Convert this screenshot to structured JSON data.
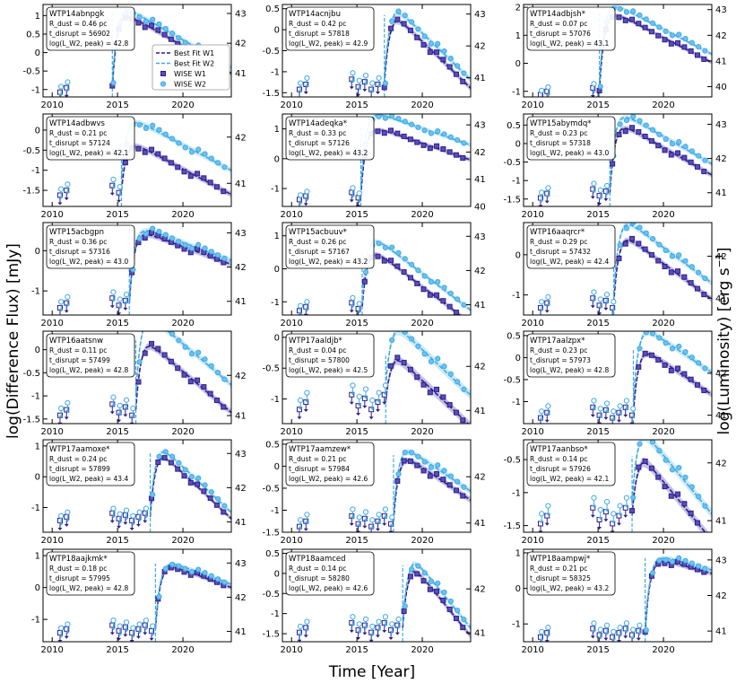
{
  "figure": {
    "ylabel_left": "log(Difference Flux) [mJy]",
    "ylabel_right": "log(Luminosity) [erg s$^{-1}$]",
    "ylabel_right_text": "log(Luminosity) [erg s",
    "ylabel_right_sup": "−1",
    "ylabel_right_close": "]",
    "xlabel": "Time [Year]",
    "legend": [
      "Best Fit W1",
      "Best Fit W2",
      "WISE W1",
      "WISE W2"
    ],
    "colors": {
      "w1": "#2d1e8c",
      "w2": "#3fa9e6",
      "w1_fill": "#5a4fb8",
      "w2_fill": "#6cc3f0"
    }
  },
  "chart_data": [
    {
      "type": "scatter",
      "name": "WTP14abnpgk",
      "lines": [
        "WTP14abnpgk",
        "R_dust = 0.46 pc",
        "t_disrupt = 56902",
        "log(L_W2, peak) = 42.8"
      ],
      "xlim": [
        2009.3,
        2023.7
      ],
      "ylim": [
        -1.2,
        1.3
      ],
      "yticks": [
        -1,
        -0.5,
        0,
        0.5,
        1
      ],
      "ylim2": [
        40.2,
        43.3
      ],
      "yticks2": [
        41,
        42,
        43
      ],
      "xticks": [
        2010,
        2015,
        2020
      ],
      "t0": 2014.6,
      "peak": 1.1,
      "decay": 6,
      "pre1": -0.95,
      "pre2": -0.8,
      "w2off": 0.08
    },
    {
      "type": "scatter",
      "name": "WTP14acnjbu",
      "lines": [
        "WTP14acnjbu",
        "R_dust = 0.42 pc",
        "t_disrupt = 57818",
        "log(L_W2, peak) = 42.9"
      ],
      "xlim": [
        2009.3,
        2023.7
      ],
      "ylim": [
        -1.6,
        0.6
      ],
      "yticks": [
        -1.5,
        -1,
        -0.5,
        0,
        0.5
      ],
      "ylim2": [
        40.4,
        43.3
      ],
      "yticks2": [
        41,
        42,
        43
      ],
      "xticks": [
        2010,
        2015,
        2020
      ],
      "t0": 2017.1,
      "peak": 0.35,
      "decay": 4,
      "pre1": -1.3,
      "pre2": -1.15,
      "w2off": 0.1
    },
    {
      "type": "scatter",
      "name": "WTP14adbjsh*",
      "lines": [
        "WTP14adbjsh*",
        "R_dust = 0.07 pc",
        "t_disrupt = 57076",
        "log(L_W2, peak) = 43.1"
      ],
      "xlim": [
        2009.3,
        2023.7
      ],
      "ylim": [
        -1.2,
        2.1
      ],
      "yticks": [
        -1,
        0,
        1,
        2
      ],
      "ylim2": [
        39.6,
        43.2
      ],
      "yticks2": [
        40,
        41,
        42,
        43
      ],
      "xticks": [
        2010,
        2015,
        2020
      ],
      "t0": 2015.1,
      "peak": 1.9,
      "decay": 5,
      "pre1": -1.0,
      "pre2": -0.85,
      "w2off": 0.15
    },
    {
      "type": "scatter",
      "name": "WTP14adbwvs",
      "lines": [
        "WTP14adbwvs",
        "R_dust = 0.21 pc",
        "t_disrupt = 57124",
        "log(L_W2, peak) = 42.1"
      ],
      "xlim": [
        2009.3,
        2023.7
      ],
      "ylim": [
        -1.9,
        0.4
      ],
      "yticks": [
        -1.5,
        -1,
        -0.5,
        0
      ],
      "ylim2": [
        40.5,
        42.5
      ],
      "yticks2": [
        41,
        42
      ],
      "xticks": [
        2010,
        2015,
        2020
      ],
      "t0": 2015.3,
      "peak": -0.3,
      "decay": 7,
      "pre1": -1.5,
      "pre2": -1.35,
      "w2off": 0.3
    },
    {
      "type": "scatter",
      "name": "WTP14adeqka*",
      "lines": [
        "WTP14adeqka*",
        "R_dust = 0.33 pc",
        "t_disrupt = 57126",
        "log(L_W2, peak) = 43.2"
      ],
      "xlim": [
        2009.3,
        2023.7
      ],
      "ylim": [
        -1.6,
        1.5
      ],
      "yticks": [
        -1,
        0,
        1
      ],
      "ylim2": [
        40,
        43.4
      ],
      "yticks2": [
        40,
        41,
        42,
        43
      ],
      "xticks": [
        2010,
        2015,
        2020
      ],
      "t0": 2015.3,
      "peak": 1.1,
      "decay": 8,
      "pre1": -1.25,
      "pre2": -1.1,
      "w2off": 0.25
    },
    {
      "type": "scatter",
      "name": "WTP15abymdq*",
      "lines": [
        "WTP15abymdq*",
        "R_dust = 0.23 pc",
        "t_disrupt = 57318",
        "log(L_W2, peak) = 43.0"
      ],
      "xlim": [
        2009.3,
        2023.7
      ],
      "ylim": [
        -1.7,
        0.8
      ],
      "yticks": [
        -1.5,
        -1,
        -0.5,
        0,
        0.5
      ],
      "ylim2": [
        40.6,
        43.3
      ],
      "yticks2": [
        41,
        42,
        43
      ],
      "xticks": [
        2010,
        2015,
        2020
      ],
      "t0": 2015.9,
      "peak": 0.55,
      "decay": 6,
      "pre1": -1.35,
      "pre2": -1.2,
      "w2off": 0.15
    },
    {
      "type": "scatter",
      "name": "WTP15acbgpn",
      "lines": [
        "WTP15acbgpn",
        "R_dust = 0.36 pc",
        "t_disrupt = 57316",
        "log(L_W2, peak) = 43.0"
      ],
      "xlim": [
        2009.3,
        2023.7
      ],
      "ylim": [
        -1.6,
        0.7
      ],
      "yticks": [
        -1,
        0
      ],
      "ylim2": [
        40.6,
        43.3
      ],
      "yticks2": [
        41,
        42,
        43
      ],
      "xticks": [
        2010,
        2015,
        2020
      ],
      "t0": 2015.9,
      "peak": 0.5,
      "decay": 10,
      "pre1": -1.3,
      "pre2": -1.15,
      "w2off": 0.05
    },
    {
      "type": "scatter",
      "name": "WTP15acbuuv*",
      "lines": [
        "WTP15acbuuv*",
        "R_dust = 0.26 pc",
        "t_disrupt = 57167",
        "log(L_W2, peak) = 43.2"
      ],
      "xlim": [
        2009.3,
        2023.7
      ],
      "ylim": [
        -1.4,
        1.4
      ],
      "yticks": [
        -1,
        0,
        1
      ],
      "ylim2": [
        40.7,
        43.4
      ],
      "yticks2": [
        41,
        42,
        43
      ],
      "xticks": [
        2010,
        2015,
        2020
      ],
      "t0": 2015.4,
      "peak": 0.6,
      "decay": 4,
      "pre1": -1.15,
      "pre2": -1.0,
      "w2off": 0.2
    },
    {
      "type": "scatter",
      "name": "WTP16aaqrcr*",
      "lines": [
        "WTP16aaqrcr*",
        "R_dust = 0.29 pc",
        "t_disrupt = 57432",
        "log(L_W2, peak) = 42.4"
      ],
      "xlim": [
        2009.3,
        2023.7
      ],
      "ylim": [
        -1.5,
        0.8
      ],
      "yticks": [
        -1,
        0
      ],
      "ylim2": [
        40.6,
        42.8
      ],
      "yticks2": [
        41,
        42
      ],
      "xticks": [
        2010,
        2015,
        2020
      ],
      "t0": 2016.2,
      "peak": 0.5,
      "decay": 5,
      "pre1": -1.2,
      "pre2": -1.05,
      "w2off": 0.2
    },
    {
      "type": "scatter",
      "name": "WTP16aatsnw",
      "lines": [
        "WTP16aatsnw",
        "R_dust = 0.11 pc",
        "t_disrupt = 57499",
        "log(L_W2, peak) = 42.8"
      ],
      "xlim": [
        2009.3,
        2023.7
      ],
      "ylim": [
        -1.6,
        0.4
      ],
      "yticks": [
        -1.5,
        -1,
        -0.5,
        0
      ],
      "ylim2": [
        40.8,
        43.1
      ],
      "yticks2": [
        41,
        42
      ],
      "xticks": [
        2010,
        2015,
        2020
      ],
      "t0": 2016.4,
      "peak": 0.2,
      "decay": 5,
      "pre1": -1.3,
      "pre2": -1.15,
      "w2off": 0.3
    },
    {
      "type": "scatter",
      "name": "WTP17aaldjb*",
      "lines": [
        "WTP17aaldjb*",
        "R_dust = 0.04 pc",
        "t_disrupt = 57800",
        "log(L_W2, peak) = 42.5"
      ],
      "xlim": [
        2009.3,
        2023.7
      ],
      "ylim": [
        -1.4,
        0.1
      ],
      "yticks": [
        -1,
        -0.5,
        0
      ],
      "ylim2": [
        40.7,
        42.8
      ],
      "yticks2": [
        41,
        42
      ],
      "xticks": [
        2010,
        2015,
        2020
      ],
      "t0": 2017.2,
      "peak": -0.3,
      "decay": 6,
      "pre1": -1.05,
      "pre2": -0.9,
      "w2off": 0.25
    },
    {
      "type": "scatter",
      "name": "WTP17aalzpx*",
      "lines": [
        "WTP17aalzpx*",
        "R_dust = 0.23 pc",
        "t_disrupt = 57973",
        "log(L_W2, peak) = 42.8"
      ],
      "xlim": [
        2009.3,
        2023.7
      ],
      "ylim": [
        -1.5,
        0.6
      ],
      "yticks": [
        -1,
        -0.5,
        0,
        0.5
      ],
      "ylim2": [
        40.8,
        43.0
      ],
      "yticks2": [
        41,
        42
      ],
      "xticks": [
        2010,
        2015,
        2020
      ],
      "t0": 2017.7,
      "peak": 0.2,
      "decay": 6,
      "pre1": -1.25,
      "pre2": -1.1,
      "w2off": 0.25
    },
    {
      "type": "scatter",
      "name": "WTP17aamoxe*",
      "lines": [
        "WTP17aamoxe*",
        "R_dust = 0.24 pc",
        "t_disrupt = 57899",
        "log(L_W2, peak) = 43.4"
      ],
      "xlim": [
        2009.3,
        2023.7
      ],
      "ylim": [
        -1.8,
        1.2
      ],
      "yticks": [
        -1,
        0,
        1
      ],
      "ylim2": [
        40.7,
        43.4
      ],
      "yticks2": [
        41,
        42,
        43
      ],
      "xticks": [
        2010,
        2015,
        2020
      ],
      "t0": 2017.5,
      "peak": 0.8,
      "decay": 3,
      "pre1": -1.3,
      "pre2": -1.15,
      "w2off": 0.1
    },
    {
      "type": "scatter",
      "name": "WTP17aamzew*",
      "lines": [
        "WTP17aamzew*",
        "R_dust = 0.21 pc",
        "t_disrupt = 57984",
        "log(L_W2, peak) = 42.6"
      ],
      "xlim": [
        2009.3,
        2023.7
      ],
      "ylim": [
        -1.5,
        0.6
      ],
      "yticks": [
        -1.5,
        -1,
        -0.5,
        0,
        0.5
      ],
      "ylim2": [
        40.8,
        42.8
      ],
      "yticks2": [
        41,
        42
      ],
      "xticks": [
        2010,
        2015,
        2020
      ],
      "t0": 2017.8,
      "peak": 0.25,
      "decay": 6,
      "pre1": -1.25,
      "pre2": -1.1,
      "w2off": 0.1
    },
    {
      "type": "scatter",
      "name": "WTP17aanbso*",
      "lines": [
        "WTP17aanbso*",
        "R_dust = 0.14 pc",
        "t_disrupt = 57926",
        "log(L_W2, peak) = 42.1"
      ],
      "xlim": [
        2009.3,
        2023.7
      ],
      "ylim": [
        -1.6,
        -0.2
      ],
      "yticks": [
        -1.5,
        -1,
        -0.5
      ],
      "ylim2": [
        40.8,
        42.4
      ],
      "yticks2": [
        41,
        42
      ],
      "xticks": [
        2010,
        2015,
        2020
      ],
      "t0": 2017.6,
      "peak": -0.45,
      "decay": 5,
      "pre1": -1.35,
      "pre2": -1.2,
      "w2off": 0.2
    },
    {
      "type": "scatter",
      "name": "WTP18aajkmk*",
      "lines": [
        "WTP18aajkmk*",
        "R_dust = 0.18 pc",
        "t_disrupt = 57995",
        "log(L_W2, peak) = 42.8"
      ],
      "xlim": [
        2009.3,
        2023.7
      ],
      "ylim": [
        -1.7,
        1.2
      ],
      "yticks": [
        -1,
        0,
        1
      ],
      "ylim2": [
        40.7,
        43.4
      ],
      "yticks2": [
        41,
        42,
        43
      ],
      "xticks": [
        2010,
        2015,
        2020
      ],
      "t0": 2017.9,
      "peak": 0.75,
      "decay": 8,
      "pre1": -1.3,
      "pre2": -1.15,
      "w2off": 0.05
    },
    {
      "type": "scatter",
      "name": "WTP18aamced",
      "lines": [
        "WTP18aamced",
        "R_dust = 0.14 pc",
        "t_disrupt = 58280",
        "log(L_W2, peak) = 42.6"
      ],
      "xlim": [
        2009.3,
        2023.7
      ],
      "ylim": [
        -1.7,
        0.6
      ],
      "yticks": [
        -1.5,
        -1,
        -0.5,
        0,
        0.5
      ],
      "ylim2": [
        40.8,
        42.9
      ],
      "yticks2": [
        41,
        42
      ],
      "xticks": [
        2010,
        2015,
        2020
      ],
      "t0": 2018.5,
      "peak": 0.2,
      "decay": 3,
      "pre1": -1.35,
      "pre2": -1.2,
      "w2off": 0.1
    },
    {
      "type": "scatter",
      "name": "WTP18aampwj*",
      "lines": [
        "WTP18aampwj*",
        "R_dust = 0.21 pc",
        "t_disrupt = 58325",
        "log(L_W2, peak) = 43.2"
      ],
      "xlim": [
        2009.3,
        2023.7
      ],
      "ylim": [
        -1.5,
        1.1
      ],
      "yticks": [
        -1,
        0,
        1
      ],
      "ylim2": [
        40.7,
        43.3
      ],
      "yticks2": [
        41,
        42,
        43
      ],
      "xticks": [
        2010,
        2015,
        2020
      ],
      "t0": 2018.6,
      "peak": 0.85,
      "decay": 12,
      "pre1": -1.25,
      "pre2": -1.1,
      "w2off": 0.05
    }
  ]
}
